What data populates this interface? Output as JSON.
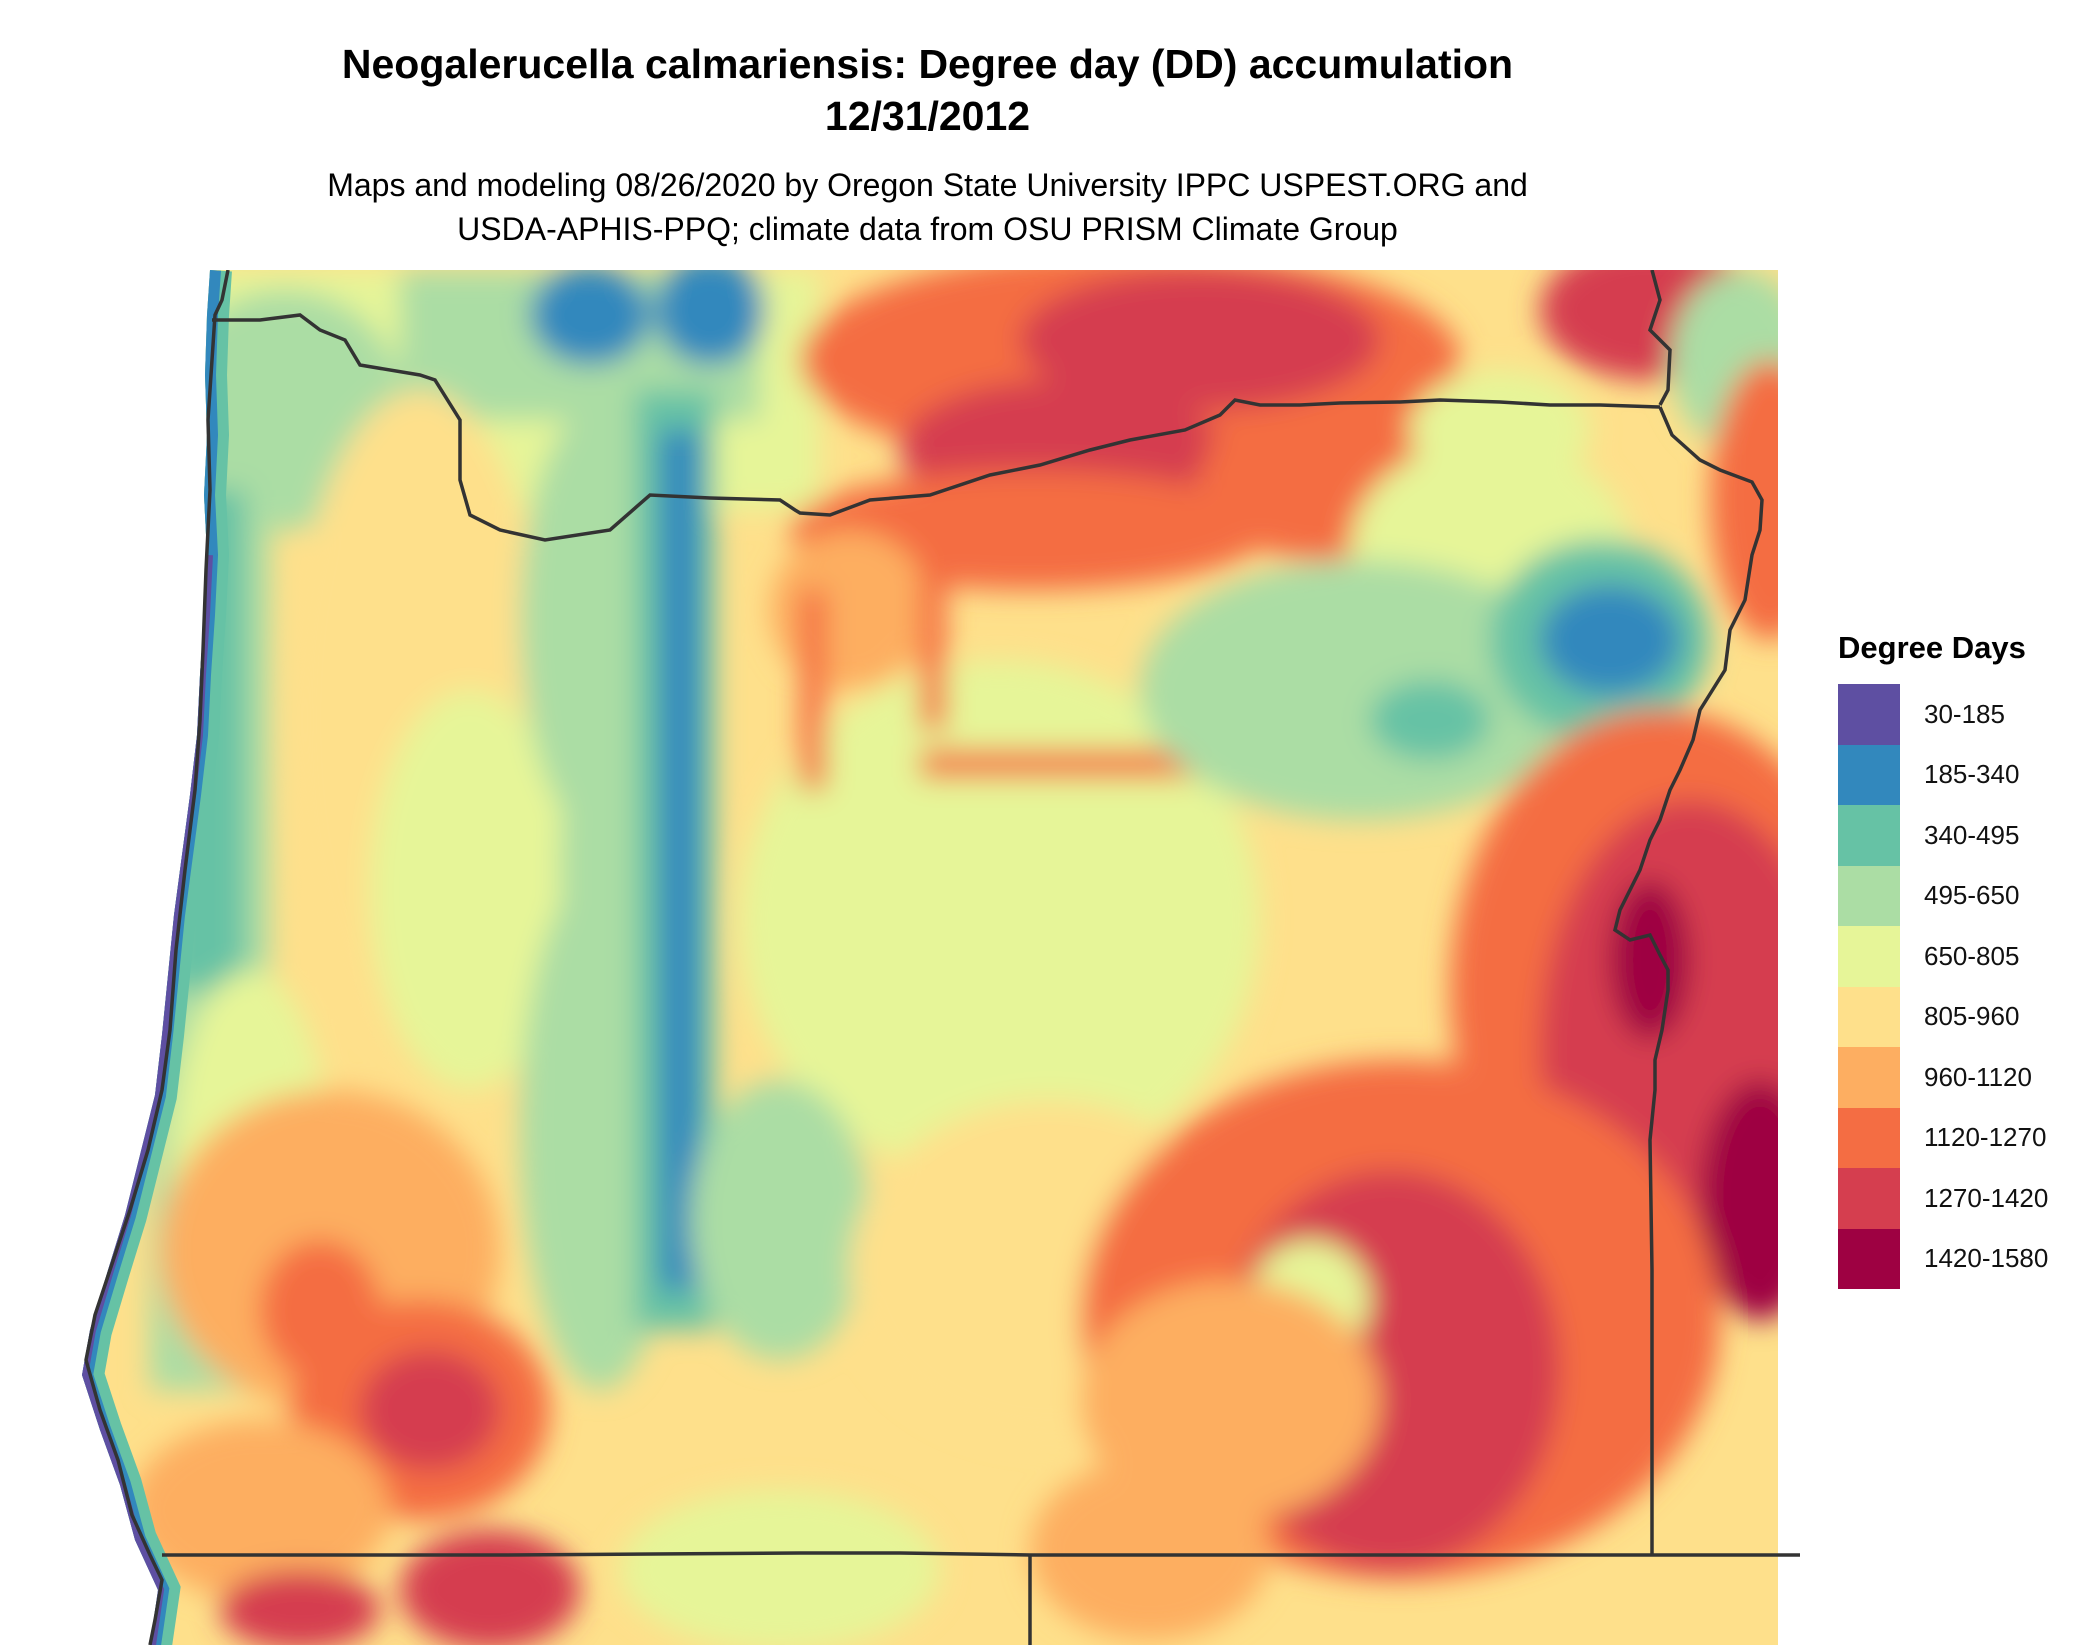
{
  "title": {
    "line1": "Neogalerucella calmariensis: Degree day (DD) accumulation",
    "line2": "12/31/2012"
  },
  "subtitle": {
    "line1": "Maps and modeling 08/26/2020 by Oregon State University IPPC USPEST.ORG and",
    "line2": "USDA-APHIS-PPQ; climate data from OSU PRISM Climate Group"
  },
  "legend": {
    "title": "Degree Days",
    "items": [
      {
        "label": "30-185",
        "color": "#5e4fa2"
      },
      {
        "label": "185-340",
        "color": "#3288bd"
      },
      {
        "label": "340-495",
        "color": "#66c2a5"
      },
      {
        "label": "495-650",
        "color": "#abdda4"
      },
      {
        "label": "650-805",
        "color": "#e6f598"
      },
      {
        "label": "805-960",
        "color": "#fee08b"
      },
      {
        "label": "960-1120",
        "color": "#fdae61"
      },
      {
        "label": "1120-1270",
        "color": "#f46d43"
      },
      {
        "label": "1270-1420",
        "color": "#d53e4f"
      },
      {
        "label": "1420-1580",
        "color": "#9e0142"
      }
    ]
  }
}
